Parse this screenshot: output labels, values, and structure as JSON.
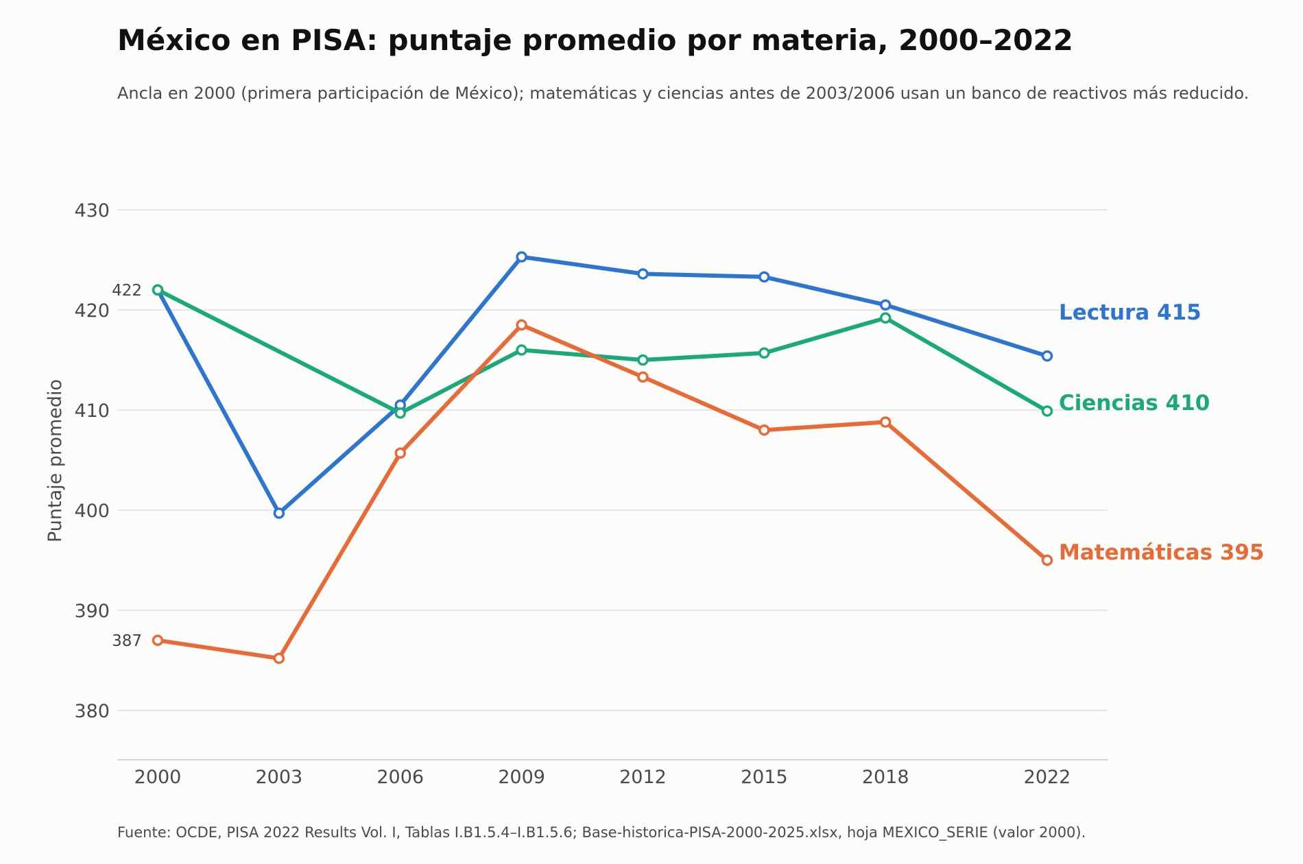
{
  "header": {
    "title": "México en PISA: puntaje promedio por materia, 2000–2022",
    "subtitle": "Ancla en 2000 (primera participación de México); matemáticas y ciencias antes de 2003/2006 usan un banco de reactivos más reducido."
  },
  "footer": {
    "source": "Fuente: OCDE, PISA 2022 Results Vol. I, Tablas I.B1.5.4–I.B1.5.6; Base-historica-PISA-2000-2025.xlsx, hoja MEXICO_SERIE (valor 2000)."
  },
  "chart_data": {
    "type": "line",
    "title": "México en PISA: puntaje promedio por materia, 2000–2022",
    "subtitle": "Ancla en 2000 (primera participación de México); matemáticas y ciencias antes de 2003/2006 usan un banco de reactivos más reducido.",
    "xlabel": "",
    "ylabel": "Puntaje promedio",
    "x": [
      2000,
      2003,
      2006,
      2009,
      2012,
      2015,
      2018,
      2022
    ],
    "xticks": [
      "2000",
      "2003",
      "2006",
      "2009",
      "2012",
      "2015",
      "2018",
      "2022"
    ],
    "ylim": [
      375,
      436
    ],
    "yticks": [
      380,
      390,
      400,
      410,
      420,
      430
    ],
    "grid": true,
    "legend": "none (direct labels at line ends)",
    "series": [
      {
        "name": "Lectura",
        "end_label": "Lectura  415",
        "color": "#2e75d1",
        "values": [
          422,
          399.7,
          410.5,
          425.3,
          423.6,
          423.3,
          420.5,
          415.4
        ]
      },
      {
        "name": "Ciencias",
        "end_label": "Ciencias  410",
        "color": "#1aaa78",
        "values": [
          422,
          null,
          409.7,
          416,
          415,
          415.7,
          419.2,
          409.9
        ]
      },
      {
        "name": "Matemáticas",
        "end_label": "Matemáticas  395",
        "color": "#e86a36",
        "values": [
          387,
          385.2,
          405.7,
          418.5,
          413.3,
          408,
          408.8,
          395
        ]
      }
    ],
    "annotations": [
      {
        "text": "422",
        "x": 2000,
        "y": 422
      },
      {
        "text": "387",
        "x": 2000,
        "y": 387
      }
    ]
  }
}
